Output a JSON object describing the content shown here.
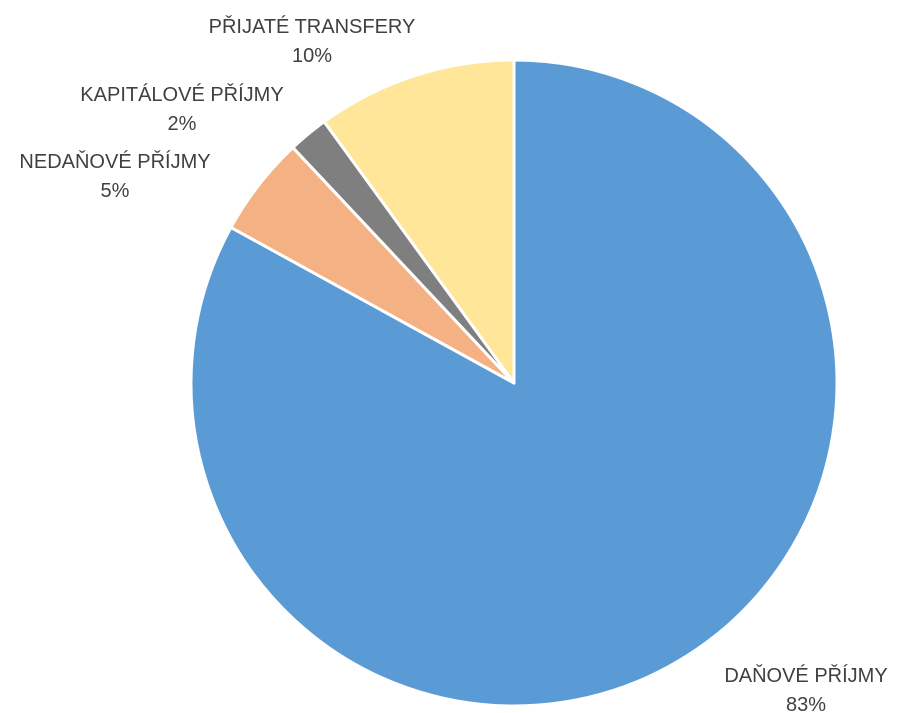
{
  "chart_data": {
    "type": "pie",
    "title": "",
    "slices": [
      {
        "label": "DAŇOVÉ PŘÍJMY",
        "percent_label": "83%",
        "value": 83,
        "color": "#5B9BD5"
      },
      {
        "label": "NEDAŇOVÉ PŘÍJMY",
        "percent_label": "5%",
        "value": 5,
        "color": "#F4B183"
      },
      {
        "label": "KAPITÁLOVÉ PŘÍJMY",
        "percent_label": "2%",
        "value": 2,
        "color": "#7F7F7F"
      },
      {
        "label": "PŘIJATÉ TRANSFERY",
        "percent_label": "10%",
        "value": 10,
        "color": "#FFE699"
      }
    ],
    "start_angle_deg": 0,
    "direction": "clockwise",
    "legend": "none",
    "data_labels": "outside"
  }
}
